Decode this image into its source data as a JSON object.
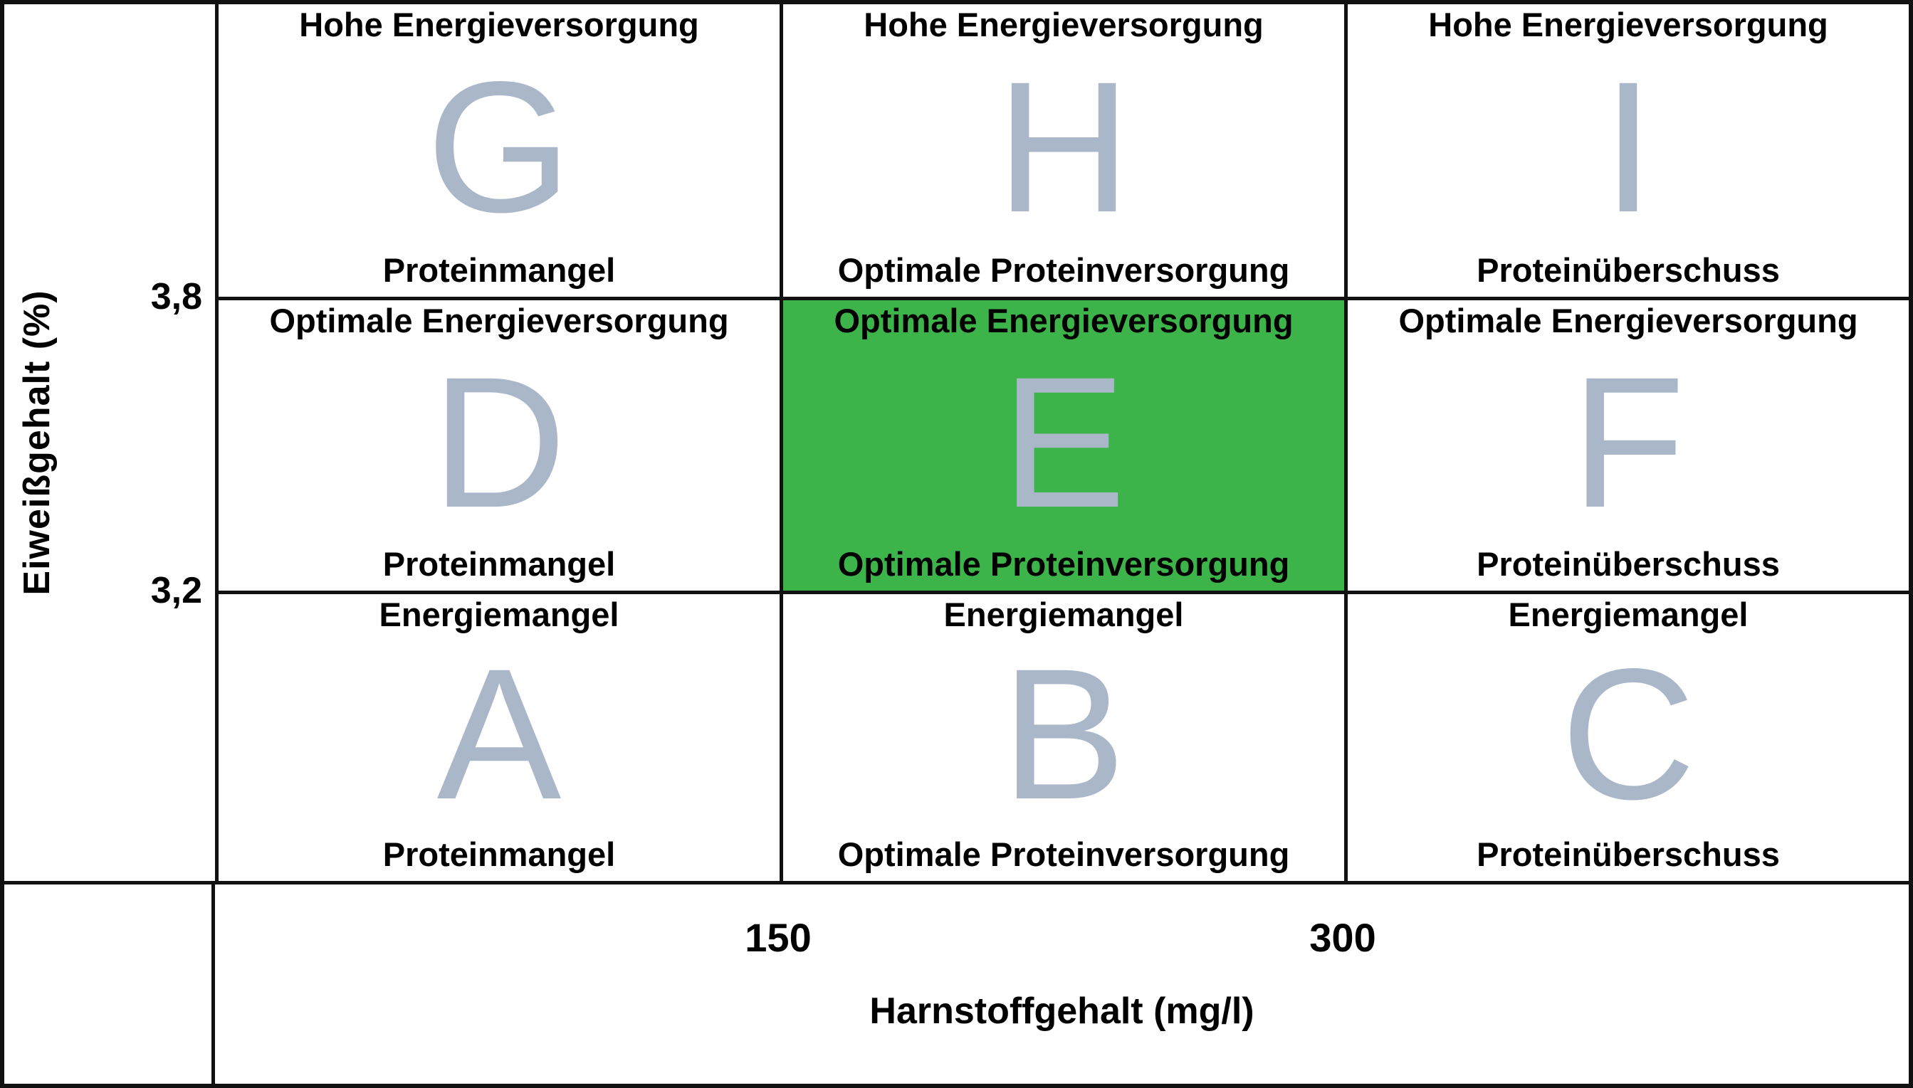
{
  "diagram": {
    "description": "Nine-field board relating milk protein content and milk urea content to energy and protein supply status",
    "colors": {
      "highlight_green": "#3cb44a",
      "letter_gray": "#a9b7c8",
      "line_black": "#111111",
      "text_black": "#000000",
      "background": "#ffffff"
    },
    "y_axis": {
      "title": "Eiweißgehalt (%)",
      "ticks": [
        "3,8",
        "3,2"
      ]
    },
    "x_axis": {
      "title": "Harnstoffgehalt (mg/l)",
      "ticks": [
        "150",
        "300"
      ]
    },
    "cells": [
      {
        "letter": "G",
        "top": "Hohe Energieversorgung",
        "bottom": "Proteinmangel",
        "highlighted": false
      },
      {
        "letter": "H",
        "top": "Hohe Energieversorgung",
        "bottom": "Optimale Proteinversorgung",
        "highlighted": false
      },
      {
        "letter": "I",
        "top": "Hohe Energieversorgung",
        "bottom": "Proteinüberschuss",
        "highlighted": false
      },
      {
        "letter": "D",
        "top": "Optimale Energieversorgung",
        "bottom": "Proteinmangel",
        "highlighted": false
      },
      {
        "letter": "E",
        "top": "Optimale Energieversorgung",
        "bottom": "Optimale Proteinversorgung",
        "highlighted": true
      },
      {
        "letter": "F",
        "top": "Optimale Energieversorgung",
        "bottom": "Proteinüberschuss",
        "highlighted": false
      },
      {
        "letter": "A",
        "top": "Energiemangel",
        "bottom": "Proteinmangel",
        "highlighted": false
      },
      {
        "letter": "B",
        "top": "Energiemangel",
        "bottom": "Optimale Proteinversorgung",
        "highlighted": false
      },
      {
        "letter": "C",
        "top": "Energiemangel",
        "bottom": "Proteinüberschuss",
        "highlighted": false
      }
    ]
  }
}
